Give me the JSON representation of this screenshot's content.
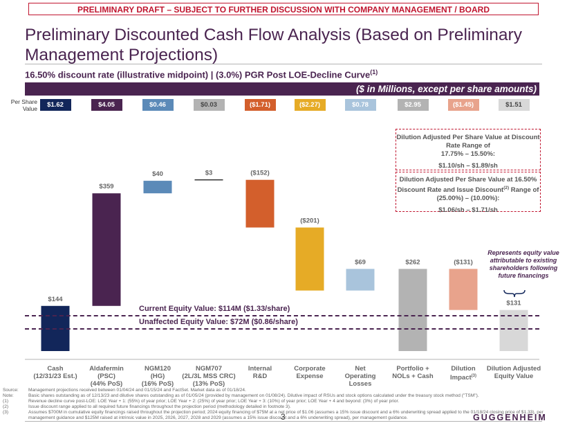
{
  "banner": "PRELIMINARY DRAFT – SUBJECT TO FURTHER DISCUSSION WITH COMPANY MANAGEMENT / BOARD",
  "title_line1": "Preliminary Discounted Cash Flow Analysis (Based on Preliminary",
  "title_line2": "Management Projections)",
  "subtitle": "16.50% discount rate (illustrative midpoint) | (3.0%) PGR Post LOE-Decline Curve",
  "subtitle_note": "(1)",
  "units": "($ in Millions, except per share amounts)",
  "per_share_label_line1": "Per Share",
  "per_share_label_line2": "Value",
  "colors": {
    "purple": "#4a2450",
    "navy": "#12265a",
    "blue": "#5b8ab8",
    "orange": "#d35f2c",
    "gold": "#e6ab26",
    "lightblue": "#a9c4dc",
    "gray": "#b3b3b3",
    "salmon": "#e8a38c",
    "lightgray": "#d8d8d8",
    "red": "#c0152f"
  },
  "chart_data": {
    "type": "waterfall",
    "categories": [
      [
        "Cash",
        "(12/31/23 Est.)"
      ],
      [
        "Aldafermin",
        "(PSC)",
        "(44% PoS)"
      ],
      [
        "NGM120",
        "(HG)",
        "(16% PoS)"
      ],
      [
        "NGM707",
        "(2L/3L MSS CRC)",
        "(13% PoS)"
      ],
      [
        "Internal",
        "R&D"
      ],
      [
        "Corporate",
        "Expense"
      ],
      [
        "Net",
        "Operating",
        "Losses"
      ],
      [
        "Portfolio +",
        "NOLs + Cash"
      ],
      [
        "Dilution",
        "Impact"
      ],
      [
        "Dilution Adjusted",
        "Equity Value"
      ]
    ],
    "category_notes": [
      "",
      "",
      "",
      "",
      "",
      "",
      "",
      "",
      "(3)",
      ""
    ],
    "values": [
      144,
      359,
      40,
      3,
      -152,
      -201,
      69,
      262,
      -131,
      131
    ],
    "kinds": [
      "delta",
      "delta",
      "delta",
      "delta",
      "delta",
      "delta",
      "delta",
      "total",
      "delta",
      "total"
    ],
    "value_labels": [
      "$144",
      "$359",
      "$40",
      "$3",
      "($152)",
      "($201)",
      "$69",
      "$262",
      "($131)",
      "$131"
    ],
    "per_share_values": [
      "$1.62",
      "$4.05",
      "$0.46",
      "$0.03",
      "($1.71)",
      "($2.27)",
      "$0.78",
      "$2.95",
      "($1.45)",
      "$1.51"
    ],
    "colors": [
      "#12265a",
      "#4a2450",
      "#5b8ab8",
      "#ffffff",
      "#d35f2c",
      "#e6ab26",
      "#a9c4dc",
      "#b3b3b3",
      "#e8a38c",
      "#d8d8d8"
    ],
    "reference_lines": [
      {
        "value": 114,
        "label": "Current Equity Value: $114M ($1.33/share)"
      },
      {
        "value": 72,
        "label": "Unaffected Equity Value: $72M ($0.86/share)"
      }
    ],
    "ylim": [
      0,
      600
    ]
  },
  "callout1": {
    "line1": "Dilution Adjusted Per Share Value at Discount",
    "line2": "Rate Range of",
    "line3": "17.75% – 15.50%:",
    "range": "$1.10/sh – $1.89/sh"
  },
  "callout2": {
    "line1": "Dilution Adjusted Per Share Value at 16.50%",
    "line2a": "Discount Rate and Issue Discount",
    "line2_note": "(2)",
    "line2b": " Range of",
    "line3": "(25.00%) – (10.00%):",
    "range": "$1.06/sh – $1.71/sh"
  },
  "equity_note": "Represents equity value attributable to existing shareholders following future financings",
  "footnotes": [
    {
      "k": "Source:",
      "v": "Management projections received between 01/04/24 and 01/15/24 and FactSet. Market data as of 01/18/24."
    },
    {
      "k": "Note:",
      "v": "Basic shares outstanding as of 12/13/23 and dilutive shares outstanding as of 01/05/24 (provided by management on 01/08/24). Dilutive impact of RSUs and stock options calculated under the treasury stock method (\"TSM\")."
    },
    {
      "k": "(1)",
      "v": "Revenue decline curve post-LOE: LOE Year + 1: (55%) of year prior; LOE Year + 2: (25%) of year prior; LOE Year + 3: (10%) of year prior; LOE Year + 4 and beyond: (3%) of year prior."
    },
    {
      "k": "(2)",
      "v": "Issue discount range applied to all required future financings throughout the projection period (methodology detailed in footnote 3)."
    },
    {
      "k": "(3)",
      "v": "Assumes $700M in cumulative equity financings raised throughout the projection period; 2024 equity financing of $75M at a net price of $1.06 (assumes a 15% issue discount and a 6% underwriting spread applied to the 01/18/24 closing price of $1.33), per management guidance and $125M raised at intrinsic value in 2025, 2026, 2027, 2028 and 2029 (assumes a 15% issue discount and a 6% underwriting spread), per management guidance."
    }
  ],
  "page_number": "3",
  "logo": "GUGGENHEIM"
}
